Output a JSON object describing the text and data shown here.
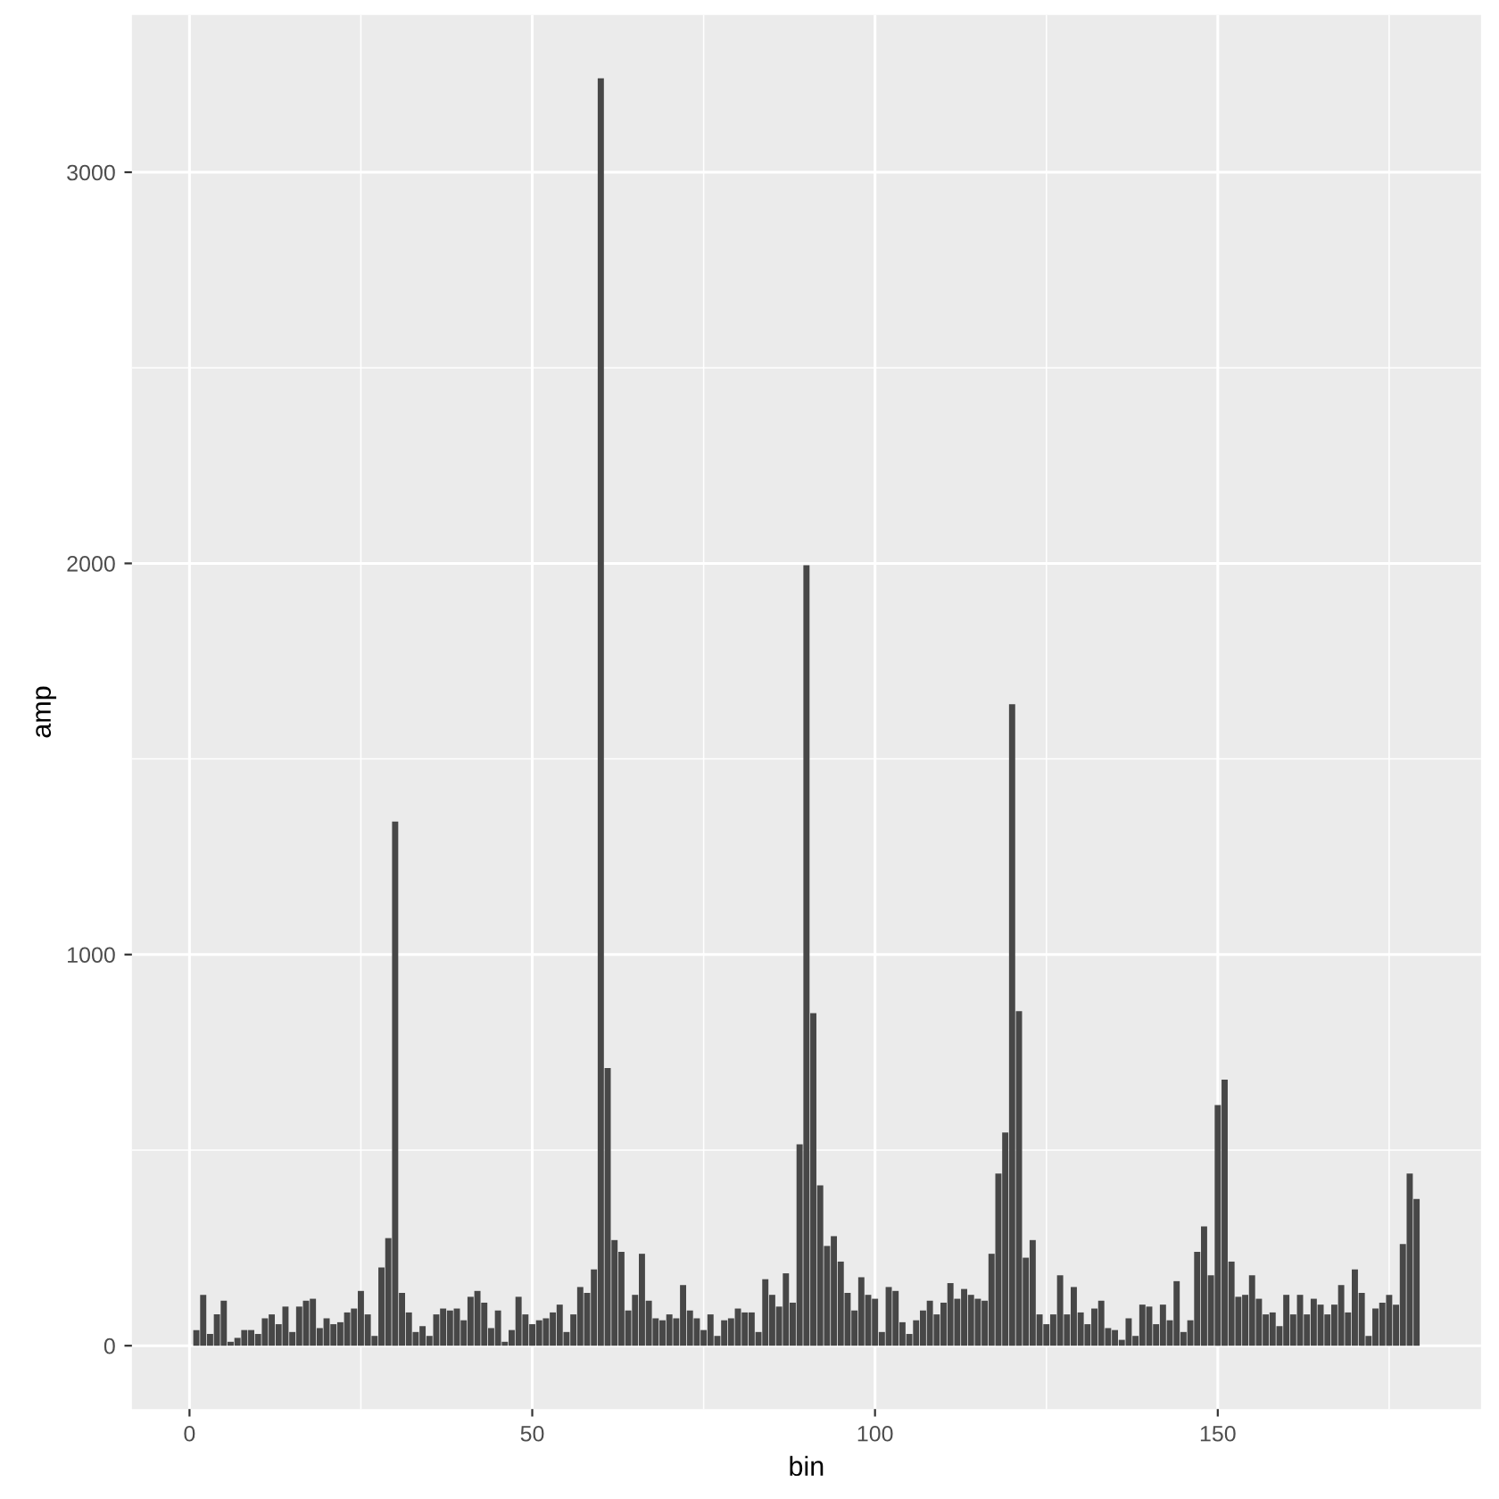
{
  "chart_data": {
    "type": "bar",
    "xlabel": "bin",
    "ylabel": "amp",
    "color": "#474747",
    "x": [
      1,
      2,
      3,
      4,
      5,
      6,
      7,
      8,
      9,
      10,
      11,
      12,
      13,
      14,
      15,
      16,
      17,
      18,
      19,
      20,
      21,
      22,
      23,
      24,
      25,
      26,
      27,
      28,
      29,
      30,
      31,
      32,
      33,
      34,
      35,
      36,
      37,
      38,
      39,
      40,
      41,
      42,
      43,
      44,
      45,
      46,
      47,
      48,
      49,
      50,
      51,
      52,
      53,
      54,
      55,
      56,
      57,
      58,
      59,
      60,
      61,
      62,
      63,
      64,
      65,
      66,
      67,
      68,
      69,
      70,
      71,
      72,
      73,
      74,
      75,
      76,
      77,
      78,
      79,
      80,
      81,
      82,
      83,
      84,
      85,
      86,
      87,
      88,
      89,
      90,
      91,
      92,
      93,
      94,
      95,
      96,
      97,
      98,
      99,
      100,
      101,
      102,
      103,
      104,
      105,
      106,
      107,
      108,
      109,
      110,
      111,
      112,
      113,
      114,
      115,
      116,
      117,
      118,
      119,
      120,
      121,
      122,
      123,
      124,
      125,
      126,
      127,
      128,
      129,
      130,
      131,
      132,
      133,
      134,
      135,
      136,
      137,
      138,
      139,
      140,
      141,
      142,
      143,
      144,
      145,
      146,
      147,
      148,
      149,
      150,
      151,
      152,
      153,
      154,
      155,
      156,
      157,
      158,
      159,
      160,
      161,
      162,
      163,
      164,
      165,
      166,
      167,
      168,
      169,
      170,
      171,
      172,
      173,
      174,
      175,
      176,
      177,
      178,
      179
    ],
    "values": [
      40,
      130,
      30,
      80,
      115,
      10,
      20,
      40,
      40,
      30,
      70,
      80,
      55,
      100,
      35,
      100,
      115,
      120,
      45,
      70,
      55,
      60,
      85,
      95,
      140,
      80,
      25,
      200,
      275,
      1340,
      135,
      85,
      35,
      50,
      25,
      80,
      95,
      90,
      95,
      65,
      125,
      140,
      110,
      45,
      90,
      10,
      40,
      125,
      80,
      55,
      65,
      70,
      85,
      105,
      35,
      80,
      150,
      135,
      195,
      3240,
      710,
      270,
      240,
      90,
      130,
      235,
      115,
      70,
      65,
      80,
      70,
      155,
      90,
      70,
      40,
      80,
      25,
      65,
      70,
      95,
      85,
      85,
      35,
      170,
      130,
      100,
      185,
      110,
      515,
      1995,
      850,
      410,
      255,
      280,
      215,
      135,
      90,
      175,
      130,
      120,
      35,
      150,
      140,
      60,
      30,
      65,
      90,
      115,
      80,
      110,
      160,
      120,
      145,
      130,
      120,
      115,
      235,
      440,
      545,
      1640,
      855,
      225,
      270,
      80,
      55,
      80,
      180,
      80,
      150,
      85,
      55,
      95,
      115,
      45,
      40,
      15,
      70,
      25,
      105,
      100,
      55,
      105,
      65,
      165,
      35,
      65,
      240,
      305,
      180,
      615,
      680,
      215,
      125,
      130,
      180,
      120,
      80,
      85,
      50,
      130,
      80,
      130,
      80,
      120,
      105,
      80,
      105,
      155,
      85,
      195,
      135,
      25,
      95,
      110,
      130,
      105,
      260,
      440,
      375
    ],
    "xlim": [
      -8.4,
      188.4
    ],
    "xticks": [
      0,
      50,
      100,
      150
    ],
    "ylim": [
      -162,
      3402
    ],
    "yticks": [
      0,
      1000,
      2000,
      3000
    ],
    "grid": true
  }
}
